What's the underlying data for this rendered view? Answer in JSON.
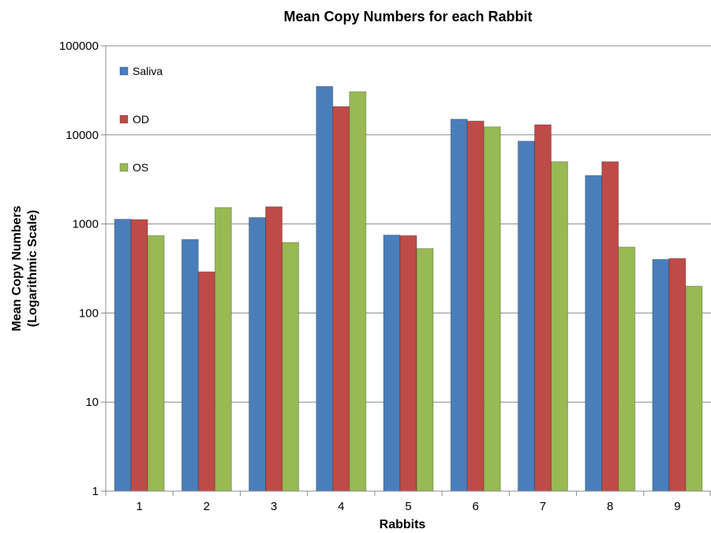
{
  "chart_data": {
    "type": "bar",
    "title": "Mean Copy Numbers for each Rabbit",
    "xlabel": "Rabbits",
    "ylabel_line1": "Mean Copy Numbers",
    "ylabel_line2": "(Logarithmic Scale)",
    "yscale": "log",
    "ylim": [
      1,
      100000
    ],
    "yticks": [
      1,
      10,
      100,
      1000,
      10000,
      100000
    ],
    "ytick_labels": [
      "1",
      "10",
      "100",
      "1000",
      "10000",
      "100000"
    ],
    "grid": true,
    "legend_position": "top-left",
    "categories": [
      "1",
      "2",
      "3",
      "4",
      "5",
      "6",
      "7",
      "8",
      "9"
    ],
    "series": [
      {
        "name": "Saliva",
        "color": "#4a7ebb",
        "values": [
          1130,
          670,
          1180,
          35000,
          750,
          15000,
          8500,
          3500,
          400
        ]
      },
      {
        "name": "OD",
        "color": "#be4b48",
        "values": [
          1120,
          290,
          1560,
          20800,
          740,
          14300,
          13000,
          5000,
          410
        ]
      },
      {
        "name": "OS",
        "color": "#98b954",
        "values": [
          740,
          1530,
          620,
          30500,
          530,
          12300,
          5000,
          550,
          200
        ]
      }
    ]
  }
}
